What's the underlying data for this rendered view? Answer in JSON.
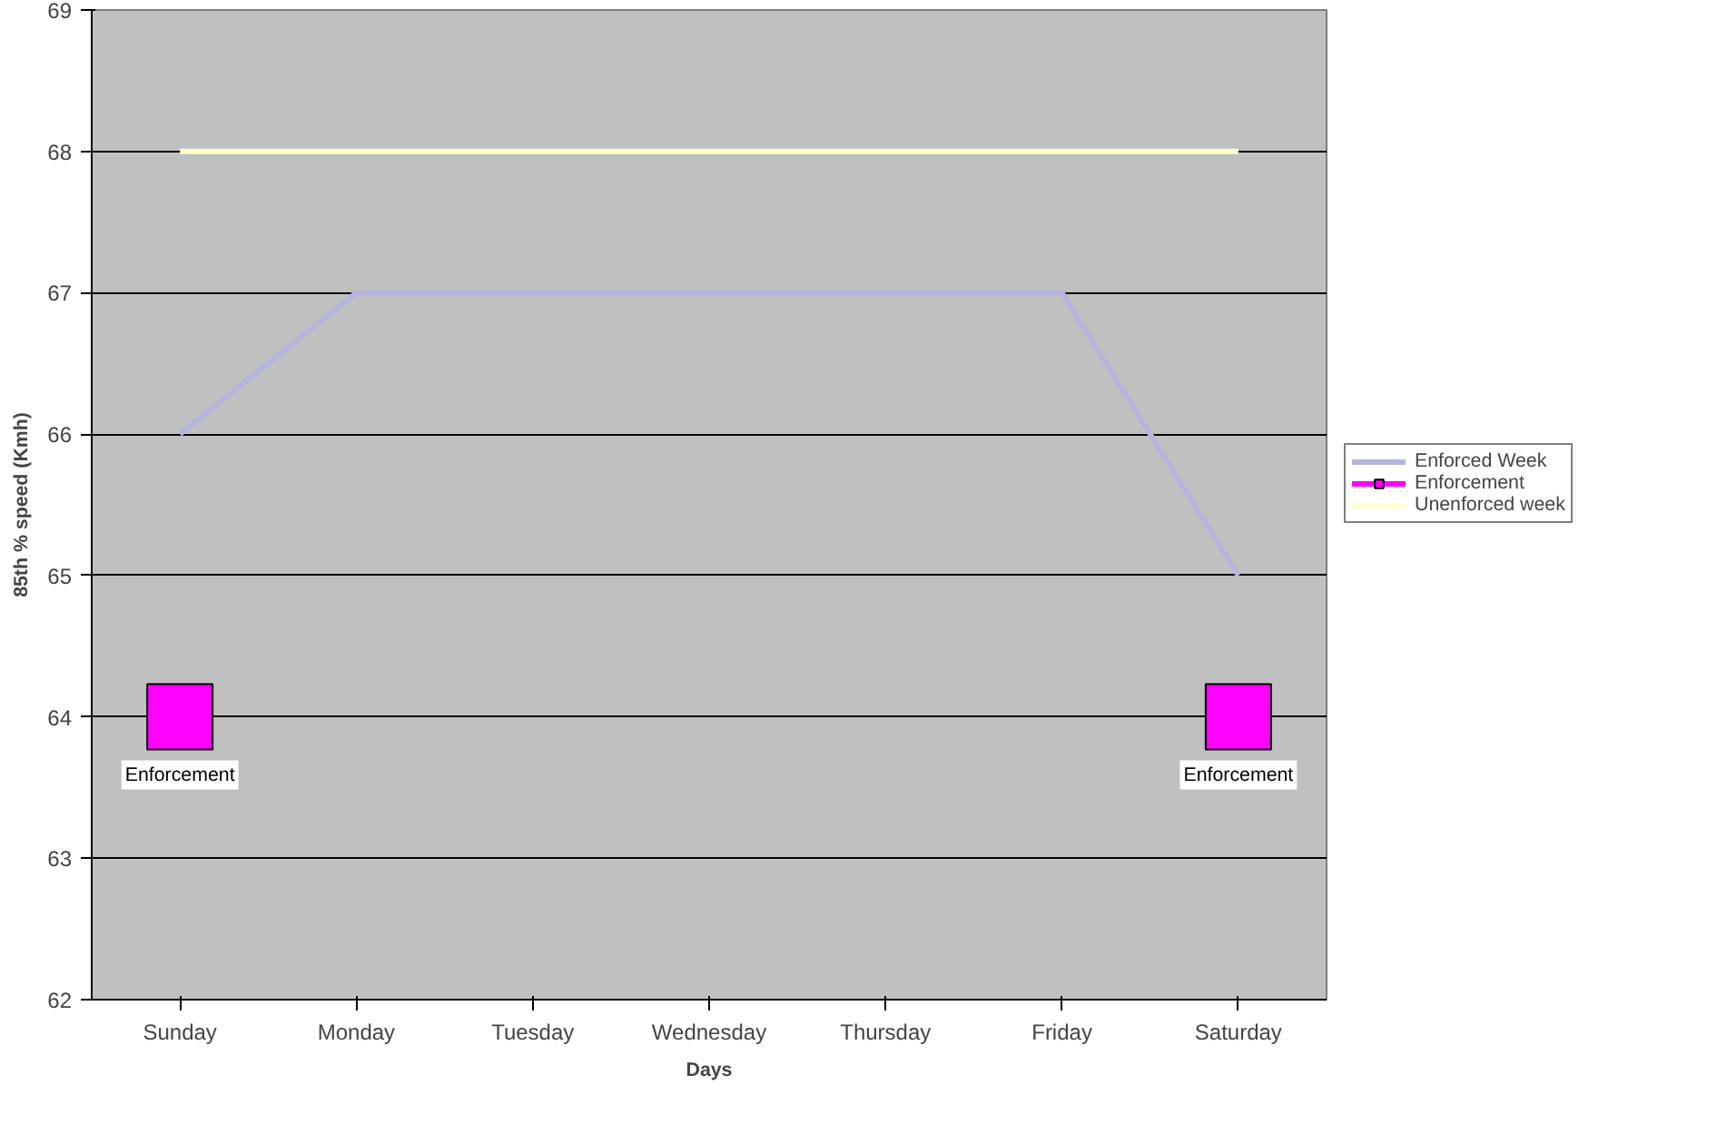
{
  "chart_data": {
    "type": "line",
    "xlabel": "Days",
    "ylabel": "85th % speed (Kmh)",
    "categories": [
      "Sunday",
      "Monday",
      "Tuesday",
      "Wednesday",
      "Thursday",
      "Friday",
      "Saturday"
    ],
    "series": [
      {
        "name": "Enforced Week",
        "color": "#b4b4dc",
        "values": [
          66,
          67,
          67,
          67,
          67,
          67,
          65
        ],
        "marker": "none"
      },
      {
        "name": "Enforcement",
        "type": "scatter",
        "color": "#ff00ff",
        "values": [
          64,
          null,
          null,
          null,
          null,
          null,
          64
        ],
        "marker": "square",
        "value_labels": [
          "Enforcement",
          null,
          null,
          null,
          null,
          null,
          "Enforcement"
        ]
      },
      {
        "name": "Unenforced week",
        "color": "#ffffcc",
        "values": [
          68,
          68,
          68,
          68,
          68,
          68,
          68
        ],
        "marker": "none"
      }
    ],
    "ylim": [
      62,
      69
    ],
    "yticks": [
      62,
      63,
      64,
      65,
      66,
      67,
      68,
      69
    ],
    "grid": "y",
    "legend": "right"
  }
}
